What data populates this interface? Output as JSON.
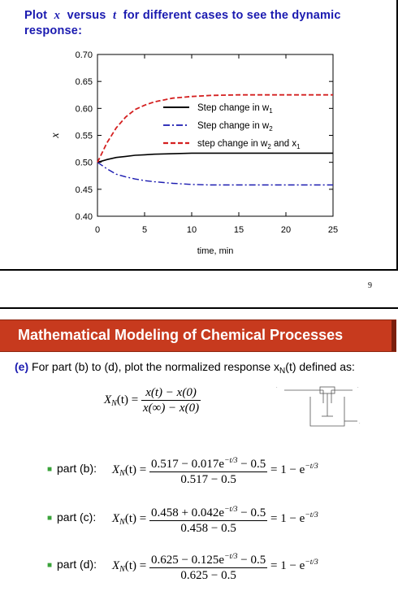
{
  "slide1": {
    "title_a": "Plot",
    "title_x": "x",
    "title_b": "versus",
    "title_t": "t",
    "title_c": "for different cases to see the dynamic response:",
    "page_number": "9"
  },
  "chart_data": {
    "type": "line",
    "xlabel": "time, min",
    "ylabel": "x",
    "xlim": [
      0,
      25
    ],
    "ylim": [
      0.4,
      0.7
    ],
    "xticks": [
      "0",
      "5",
      "10",
      "15",
      "20",
      "25"
    ],
    "yticks": [
      "0.40",
      "0.45",
      "0.50",
      "0.55",
      "0.60",
      "0.65",
      "0.70"
    ],
    "legend_position": "upper-right",
    "grid": false,
    "series": [
      {
        "name": "Step change in w",
        "subscript": "1",
        "color": "#000000",
        "dash": "solid",
        "x": [
          0,
          1,
          2,
          3,
          4,
          5,
          6,
          8,
          10,
          12,
          15,
          20,
          25
        ],
        "y": [
          0.5,
          0.505,
          0.509,
          0.511,
          0.513,
          0.514,
          0.515,
          0.516,
          0.517,
          0.517,
          0.517,
          0.517,
          0.517
        ]
      },
      {
        "name": "Step change in w",
        "subscript": "2",
        "color": "#1a1ab0",
        "dash": "dashdot",
        "x": [
          0,
          1,
          2,
          3,
          4,
          5,
          6,
          8,
          10,
          12,
          15,
          20,
          25
        ],
        "y": [
          0.5,
          0.488,
          0.478,
          0.473,
          0.469,
          0.466,
          0.464,
          0.461,
          0.459,
          0.458,
          0.458,
          0.458,
          0.458
        ]
      },
      {
        "name": "step change in w",
        "subscript": "2",
        "name_tail": " and x",
        "subscript2": "1",
        "color": "#d42020",
        "dash": "dashed",
        "x": [
          0,
          1,
          2,
          3,
          4,
          5,
          6,
          8,
          10,
          12,
          15,
          20,
          25
        ],
        "y": [
          0.5,
          0.536,
          0.564,
          0.584,
          0.598,
          0.606,
          0.612,
          0.619,
          0.622,
          0.624,
          0.625,
          0.625,
          0.625
        ]
      }
    ]
  },
  "slide2": {
    "banner": "Mathematical Modeling of Chemical Processes",
    "intro_label": "(e)",
    "intro_text": "For part (b) to (d), plot the normalized response x",
    "intro_sub": "N",
    "intro_tail": "(t) defined as:",
    "def_lhs": "X",
    "def_lhs_sub": "N",
    "def_lhs_arg": "(t) =",
    "def_num": "x(t) − x(0)",
    "def_den": "x(∞) − x(0)",
    "parts": [
      {
        "label": "part (b):",
        "num_a": "0.517 − 0.017e",
        "exp": "−t/3",
        "num_b": " − 0.5",
        "den": "0.517 − 0.5",
        "rhs": "= 1 − e",
        "rhs_exp": "−t/3"
      },
      {
        "label": "part (c):",
        "num_a": "0.458 + 0.042e",
        "exp": "−t/3",
        "num_b": " − 0.5",
        "den": "0.458 − 0.5",
        "rhs": "= 1 − e",
        "rhs_exp": "−t/3"
      },
      {
        "label": "part (d):",
        "num_a": "0.625 − 0.125e",
        "exp": "−t/3",
        "num_b": " − 0.5",
        "den": "0.625 − 0.5",
        "rhs": "= 1 − e",
        "rhs_exp": "−t/3"
      }
    ],
    "part_lhs": "X",
    "part_lhs_sub": "N",
    "part_lhs_arg": "(t) ="
  }
}
